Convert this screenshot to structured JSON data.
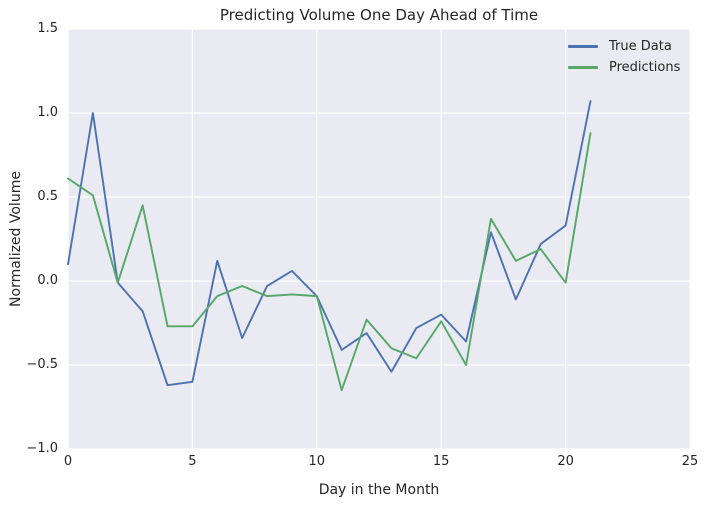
{
  "chart_data": {
    "type": "line",
    "title": "Predicting Volume One Day Ahead of Time",
    "xlabel": "Day in the Month",
    "ylabel": "Normalized Volume",
    "xlim": [
      0,
      25
    ],
    "ylim": [
      -1.0,
      1.5
    ],
    "xticks": [
      0,
      5,
      10,
      15,
      20,
      25
    ],
    "yticks": [
      -1.0,
      -0.5,
      0.0,
      0.5,
      1.0,
      1.5
    ],
    "grid": true,
    "legend_position": "upper right",
    "plot_bg_color": "#EAEAF2",
    "grid_color": "#FFFFFF",
    "figure_bg_color": "#FFFFFF",
    "text_color": "#262626",
    "x": [
      0,
      1,
      2,
      3,
      4,
      5,
      6,
      7,
      8,
      9,
      10,
      11,
      12,
      13,
      14,
      15,
      16,
      17,
      18,
      19,
      20,
      21
    ],
    "series": [
      {
        "name": "True Data",
        "color": "#4C72B0",
        "values": [
          0.1,
          1.0,
          -0.01,
          -0.18,
          -0.62,
          -0.6,
          0.12,
          -0.34,
          -0.03,
          0.06,
          -0.09,
          -0.41,
          -0.31,
          -0.54,
          -0.28,
          -0.2,
          -0.36,
          0.29,
          -0.11,
          0.22,
          0.33,
          1.07
        ]
      },
      {
        "name": "Predictions",
        "color": "#55A868",
        "values": [
          0.61,
          0.51,
          -0.01,
          0.45,
          -0.27,
          -0.27,
          -0.09,
          -0.03,
          -0.09,
          -0.08,
          -0.09,
          -0.65,
          -0.23,
          -0.4,
          -0.46,
          -0.24,
          -0.5,
          0.37,
          0.12,
          0.19,
          -0.01,
          0.88
        ]
      }
    ]
  }
}
